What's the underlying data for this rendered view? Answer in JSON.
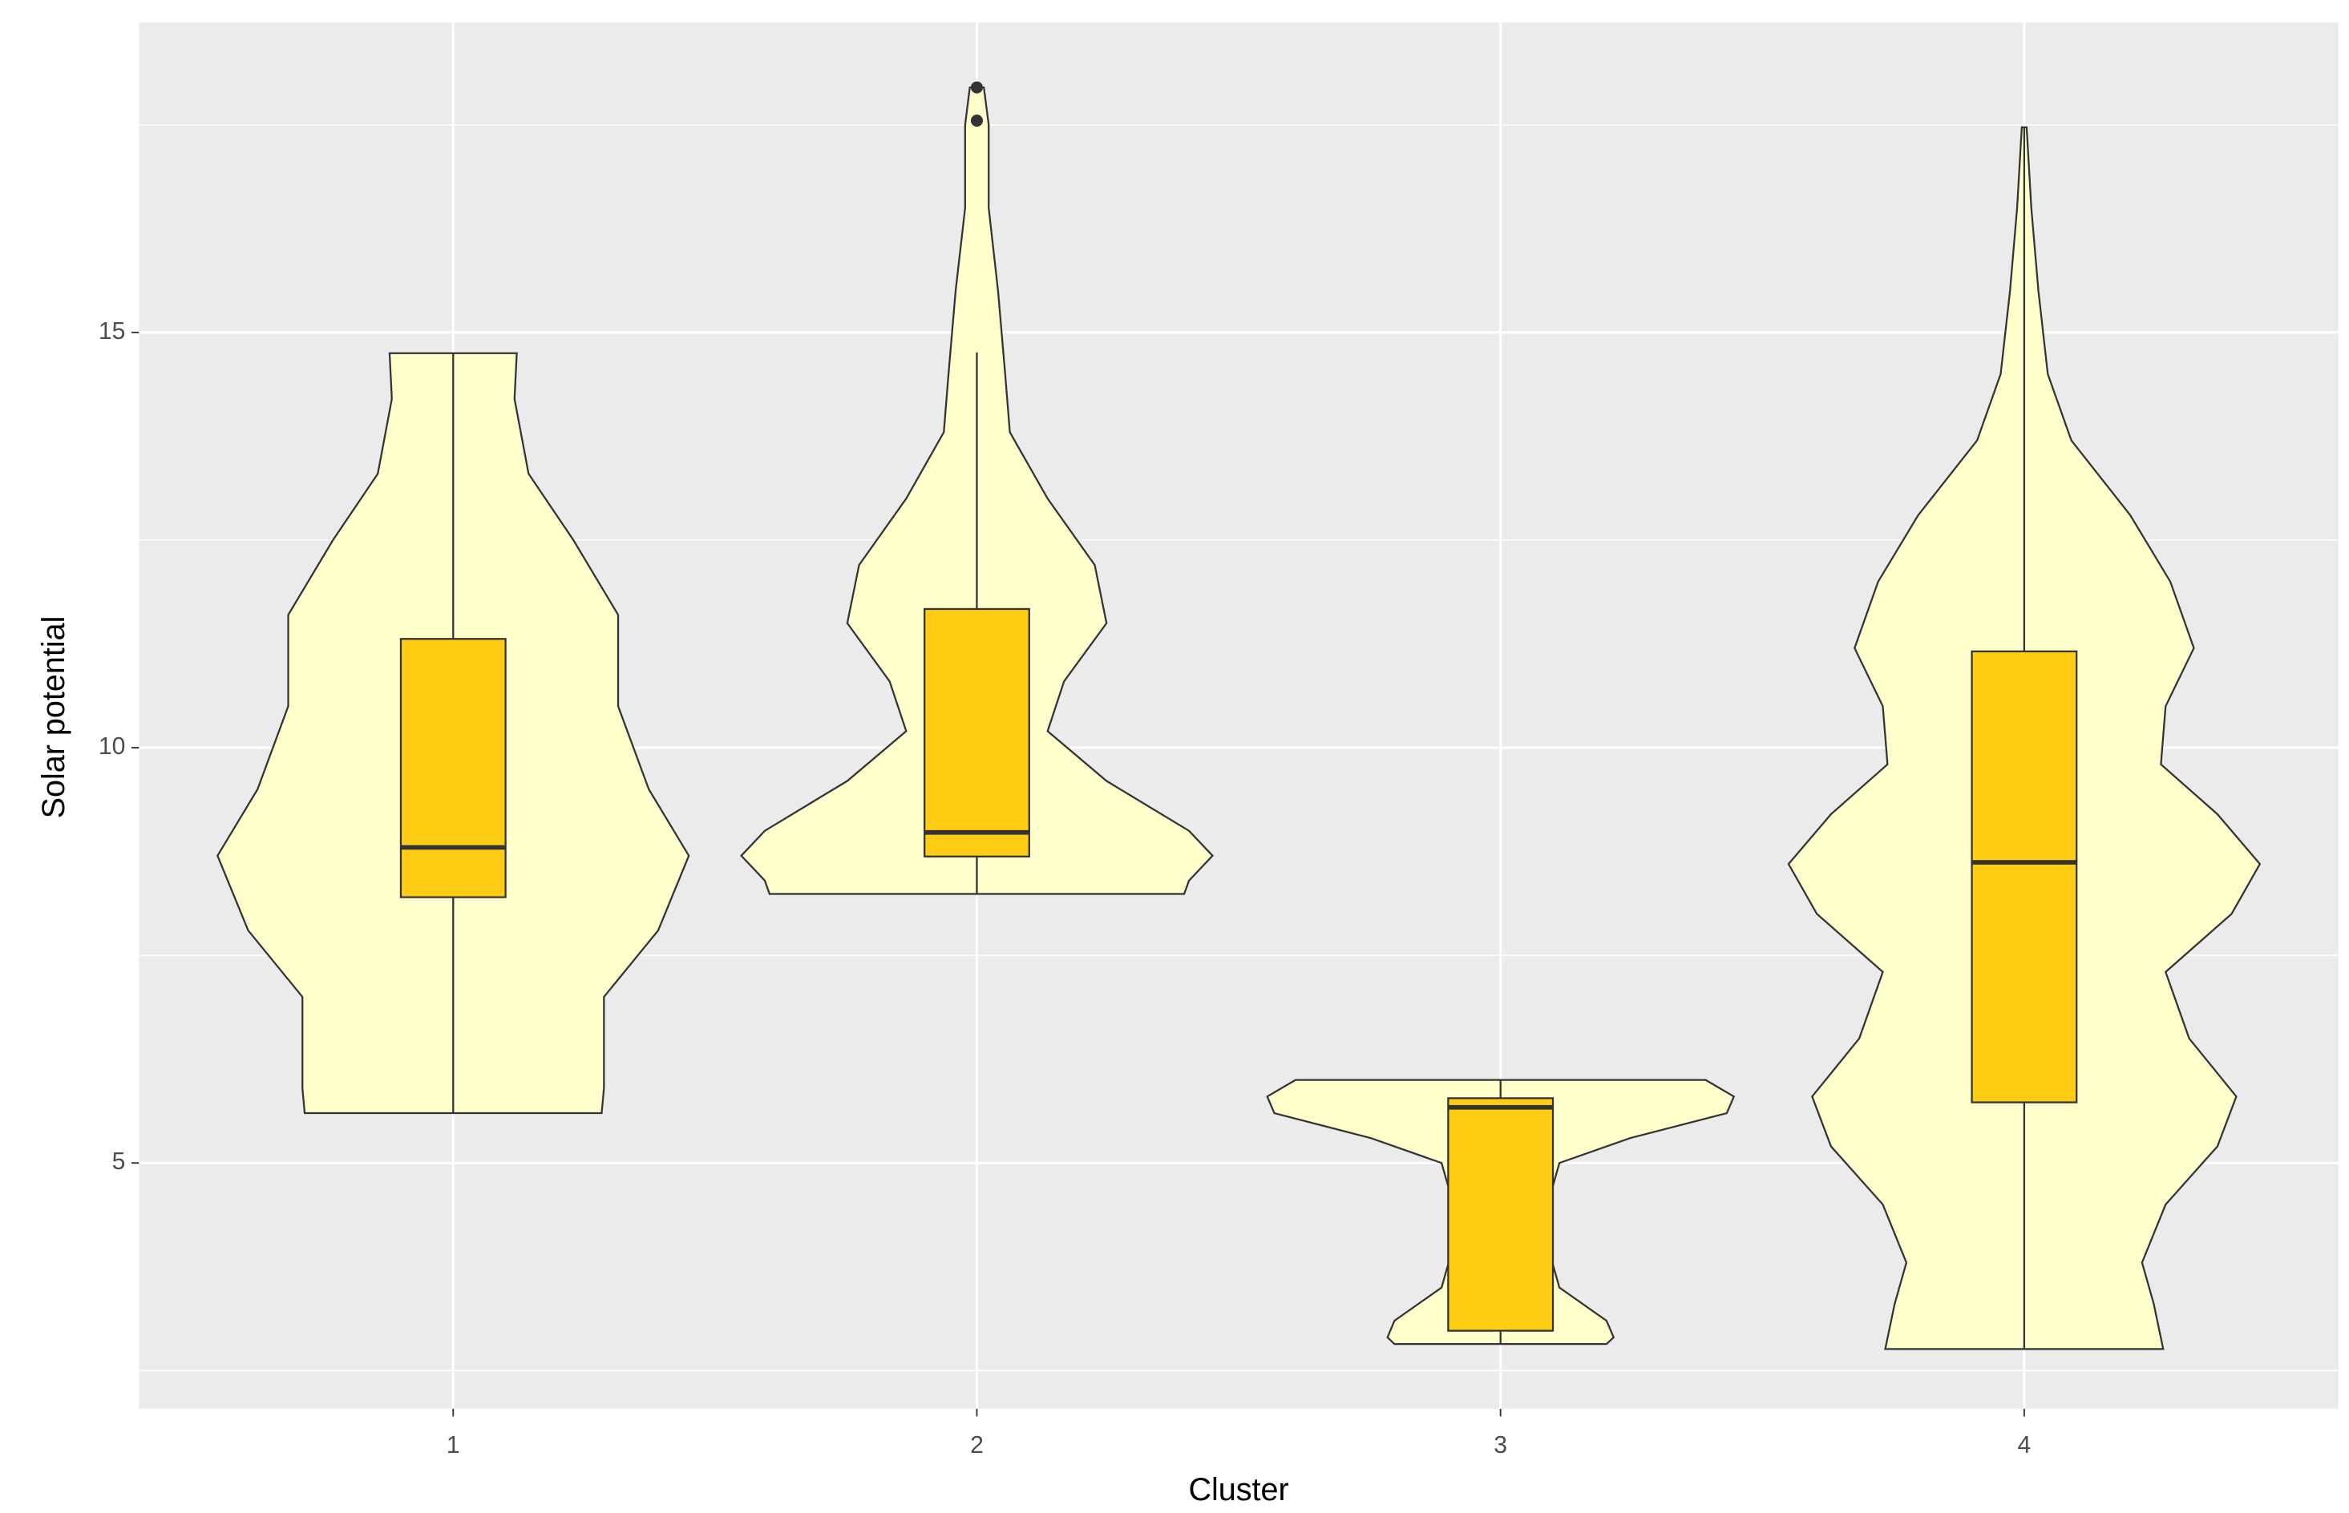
{
  "chart_data": {
    "type": "violin",
    "x_label": "Cluster",
    "y_label": "Solar potential",
    "categories": [
      "1",
      "2",
      "3",
      "4"
    ],
    "ylim": [
      2.04,
      18.73
    ],
    "yticks": [
      5,
      10,
      15
    ],
    "minor_yticks": [
      2.5,
      7.5,
      12.5,
      17.5
    ],
    "grid": true,
    "violin_color": "#ffffcc",
    "box_color": "#ffcc14",
    "violins": [
      {
        "y": [
          14.75,
          14.2,
          13.3,
          12.5,
          11.6,
          10.5,
          9.5,
          8.7,
          7.8,
          7.0,
          6.5,
          5.9,
          5.6
        ],
        "width": [
          0.27,
          0.26,
          0.32,
          0.51,
          0.7,
          0.7,
          0.83,
          1.0,
          0.87,
          0.64,
          0.64,
          0.64,
          0.63
        ]
      },
      {
        "y": [
          17.95,
          17.5,
          16.5,
          15.5,
          14.5,
          13.8,
          13.0,
          12.2,
          11.5,
          10.8,
          10.2,
          9.6,
          9.0,
          8.7,
          8.4,
          8.24
        ],
        "width": [
          0.03,
          0.05,
          0.05,
          0.09,
          0.12,
          0.14,
          0.3,
          0.5,
          0.55,
          0.37,
          0.3,
          0.55,
          0.9,
          1.0,
          0.9,
          0.88
        ]
      },
      {
        "y": [
          6.0,
          5.8,
          5.6,
          5.3,
          5.0,
          4.5,
          4.0,
          3.5,
          3.1,
          2.9,
          2.82
        ],
        "width": [
          0.87,
          0.99,
          0.96,
          0.55,
          0.25,
          0.2,
          0.2,
          0.25,
          0.45,
          0.48,
          0.45
        ]
      },
      {
        "y": [
          17.47,
          16.5,
          15.5,
          14.5,
          13.7,
          12.8,
          12.0,
          11.2,
          10.5,
          9.8,
          9.2,
          8.6,
          8.0,
          7.3,
          6.5,
          5.8,
          5.2,
          4.5,
          3.8,
          3.3,
          2.76
        ],
        "width": [
          0.01,
          0.03,
          0.06,
          0.1,
          0.2,
          0.45,
          0.62,
          0.72,
          0.6,
          0.58,
          0.82,
          1.0,
          0.88,
          0.6,
          0.7,
          0.9,
          0.82,
          0.6,
          0.5,
          0.55,
          0.59
        ]
      }
    ],
    "boxes": [
      {
        "min": 5.6,
        "q1": 8.2,
        "median": 8.8,
        "q3": 11.31,
        "max": 14.75,
        "outliers": []
      },
      {
        "min": 8.24,
        "q1": 8.69,
        "median": 8.98,
        "q3": 11.67,
        "max": 14.76,
        "outliers": [
          17.95,
          17.55
        ]
      },
      {
        "min": 2.82,
        "q1": 2.98,
        "median": 5.67,
        "q3": 5.78,
        "max": 6.0,
        "outliers": []
      },
      {
        "min": 2.76,
        "q1": 5.73,
        "median": 8.62,
        "q3": 11.16,
        "max": 17.47,
        "outliers": []
      }
    ]
  }
}
